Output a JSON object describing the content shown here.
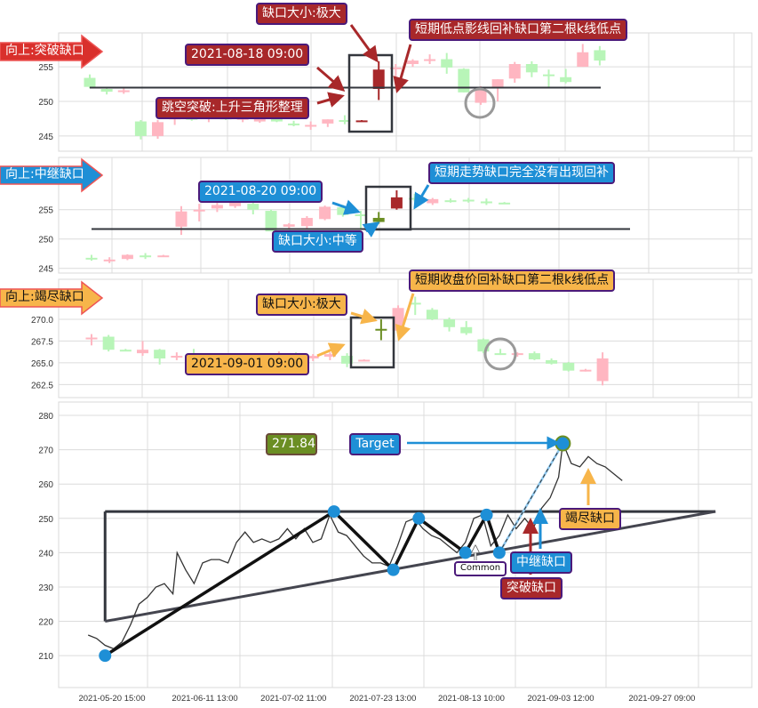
{
  "colors": {
    "up": "#ffb6c1",
    "down": "#b8f5b8",
    "gap_red": "#a8282a",
    "gap_olive": "#6b8e23",
    "line": "#33363d",
    "pivot": "#1e8fd6"
  },
  "panels": [
    {
      "tag": "向上:突破缺口",
      "tag_color": "#d9302c",
      "yticks": [
        "245",
        "250",
        "255"
      ],
      "ytick_values": [
        245,
        250,
        255
      ],
      "ylim": [
        242.8,
        259.9
      ],
      "level": 252,
      "candles": [
        [
          253.4,
          253.9,
          251.9,
          252.1
        ],
        [
          251.8,
          252.1,
          251.0,
          251.4
        ],
        [
          251.5,
          251.9,
          251.1,
          251.6
        ],
        [
          247.1,
          247.3,
          244.5,
          245.0
        ],
        [
          245.0,
          247.3,
          244.6,
          247.0
        ],
        [
          247.4,
          248.3,
          246.6,
          247.9
        ],
        [
          247.6,
          248,
          247.2,
          247.5
        ],
        [
          247.5,
          248,
          247,
          247.7
        ],
        [
          247.7,
          248.2,
          247.3,
          247.4
        ],
        [
          247.4,
          247.8,
          247,
          247.6
        ],
        [
          247.1,
          247.7,
          246.9,
          247.6
        ],
        [
          247.6,
          247.8,
          247.0,
          247.1
        ],
        [
          246.8,
          247.2,
          246.4,
          246.7
        ],
        [
          246.5,
          247.1,
          245.9,
          246.6
        ],
        [
          246.8,
          247.4,
          246.3,
          247.4
        ],
        [
          247.3,
          248.0,
          246.7,
          247.2
        ],
        [
          247.2,
          247.3,
          247.1,
          247.25,
          "#a8282a"
        ],
        [
          251.8,
          255.8,
          250.2,
          254.6,
          "#a8282a"
        ],
        [
          254.8,
          255.4,
          252.4,
          254.9
        ],
        [
          255.4,
          256.1,
          255.0,
          255.9
        ],
        [
          256.0,
          256.8,
          255.4,
          256.1
        ],
        [
          256.1,
          257.0,
          254.0,
          254.9
        ],
        [
          254.7,
          254.8,
          251.3,
          251.3
        ],
        [
          249.8,
          252.2,
          249.5,
          251.7
        ],
        [
          252.0,
          253.2,
          250.0,
          253.2
        ],
        [
          253.3,
          255.7,
          252.7,
          255.4
        ],
        [
          255.4,
          255.8,
          253.5,
          254.2
        ],
        [
          253.9,
          254.6,
          251.9,
          253.8
        ],
        [
          253.5,
          254.7,
          252.6,
          252.8
        ],
        [
          255.0,
          258.3,
          255.0,
          257.1
        ],
        [
          257.4,
          258.0,
          255.2,
          255.9
        ]
      ],
      "annotations": [
        "缺口大小:极大",
        "2021-08-18 09:00",
        "跳空突破:上升三角形整理",
        "短期低点影线回补缺口第二根k线低点"
      ]
    },
    {
      "tag": "向上:中继缺口",
      "tag_color": "#1e8fd6",
      "yticks": [
        "245",
        "250",
        "255"
      ],
      "ytick_values": [
        245,
        250,
        255
      ],
      "ylim": [
        244.2,
        263.9
      ],
      "level": 251.7,
      "candles": [
        [
          246.8,
          247.3,
          246.3,
          246.7
        ],
        [
          246.4,
          246.9,
          245.9,
          246.5
        ],
        [
          246.6,
          247.4,
          246.4,
          247.3
        ],
        [
          247.2,
          247.6,
          246.6,
          247.1
        ],
        [
          247.2,
          247.3,
          247.1,
          247.2
        ],
        [
          252.1,
          255.6,
          250.7,
          254.7
        ],
        [
          254.7,
          256.0,
          253.0,
          255.0
        ],
        [
          255.2,
          256.2,
          254.6,
          255.8
        ],
        [
          255.6,
          256.6,
          255.3,
          256.2
        ],
        [
          256.0,
          256.2,
          254.2,
          255.0
        ],
        [
          254.8,
          255.0,
          251.3,
          251.3
        ],
        [
          252.1,
          252.7,
          251.6,
          252.5
        ],
        [
          252.2,
          253.9,
          251.8,
          253.6
        ],
        [
          253.4,
          255.7,
          253.2,
          255.5
        ],
        [
          255.4,
          255.8,
          253.8,
          254.1
        ],
        [
          254.2,
          254.8,
          251.7,
          254.0
        ],
        [
          252.9,
          254.6,
          252.6,
          253.6,
          "#6b8e23"
        ],
        [
          255.2,
          258.3,
          255.0,
          257.1,
          "#a8282a"
        ],
        [
          257.0,
          257.7,
          256.4,
          256.9
        ],
        [
          256.1,
          257.0,
          255.8,
          256.8
        ],
        [
          256.6,
          256.9,
          256.2,
          256.5
        ],
        [
          256.7,
          257.0,
          256.2,
          256.6
        ],
        [
          256.4,
          256.9,
          255.8,
          256.2
        ],
        [
          256.2,
          256.3,
          256.1,
          256.1
        ]
      ],
      "annotations": [
        "2021-08-20 09:00",
        "缺口大小:中等",
        "短期走势缺口完全没有出现回补"
      ]
    },
    {
      "tag": "向上:竭尽缺口",
      "tag_color": "#f7b54a",
      "yticks": [
        "262.5",
        "265.0",
        "267.5",
        "270.0"
      ],
      "ytick_values": [
        262.5,
        265,
        267.5,
        270
      ],
      "ylim": [
        261.0,
        274.6
      ],
      "candles": [
        [
          267.8,
          268.3,
          267.0,
          267.9
        ],
        [
          268.0,
          268.2,
          266.3,
          266.5
        ],
        [
          266.5,
          266.6,
          266.4,
          266.45
        ],
        [
          266.1,
          267.5,
          265.8,
          266.5
        ],
        [
          266.5,
          266.6,
          264.8,
          265.5
        ],
        [
          265.6,
          266.2,
          265.3,
          265.8
        ],
        [
          265.8,
          266.6,
          265.2,
          265.6
        ],
        [
          265.4,
          265.9,
          265.1,
          265.6
        ],
        [
          265.6,
          265.8,
          265.0,
          265.3
        ],
        [
          265.3,
          265.8,
          265.0,
          265.5
        ],
        [
          265.5,
          265.9,
          265.2,
          265.4
        ],
        [
          265.4,
          266.3,
          265.2,
          265.7
        ],
        [
          265.7,
          266.2,
          265.3,
          265.5
        ],
        [
          265.5,
          266.0,
          265.2,
          265.8
        ],
        [
          265.7,
          266.2,
          265.3,
          266.0
        ],
        [
          265.8,
          266.1,
          264.5,
          264.9
        ],
        [
          265.3,
          265.4,
          265.2,
          265.35
        ],
        [
          268.8,
          270.0,
          267.6,
          268.9,
          "#6b8e23"
        ],
        [
          268.7,
          271.6,
          268.4,
          271.3
        ],
        [
          271.9,
          272.6,
          270.5,
          271.8
        ],
        [
          271.1,
          271.3,
          269.9,
          270.0
        ],
        [
          270.0,
          270.2,
          268.6,
          269.1
        ],
        [
          269.1,
          269.8,
          268.2,
          268.4
        ],
        [
          267.7,
          267.8,
          266.1,
          266.3
        ],
        [
          266.1,
          266.6,
          265.9,
          266.0
        ],
        [
          266.0,
          266.2,
          265.7,
          266.1
        ],
        [
          266.1,
          266.3,
          265.3,
          265.4
        ],
        [
          265.3,
          265.5,
          264.8,
          264.9
        ],
        [
          265.0,
          265.1,
          264.0,
          264.1
        ],
        [
          264.1,
          264.3,
          264.0,
          264.2
        ],
        [
          262.9,
          266.2,
          262.4,
          265.5
        ]
      ],
      "annotations": [
        "缺口大小:极大",
        "2021-09-01 09:00",
        "短期收盘价回补缺口第二根k线低点"
      ]
    }
  ],
  "chart_data": {
    "type": "line",
    "ylim": [
      200.7,
      283.9
    ],
    "yticks": [
      210,
      220,
      230,
      240,
      250,
      260,
      270,
      280
    ],
    "xtick_labels": [
      "2021-05-20 15:00",
      "2021-06-11 13:00",
      "2021-07-02 11:00",
      "2021-07-23 13:00",
      "2021-08-13 10:00",
      "2021-09-03 12:00",
      "2021-09-27 09:00"
    ],
    "grid": true,
    "price": [
      [
        "2021-05-15",
        216
      ],
      [
        "2021-05-17",
        215
      ],
      [
        "2021-05-19",
        213
      ],
      [
        "2021-05-21",
        212
      ],
      [
        "2021-05-23",
        214
      ],
      [
        "2021-05-25",
        219
      ],
      [
        "2021-05-27",
        225
      ],
      [
        "2021-05-29",
        227
      ],
      [
        "2021-05-31",
        230
      ],
      [
        "2021-06-02",
        231
      ],
      [
        "2021-06-04",
        228
      ],
      [
        "2021-06-05",
        240
      ],
      [
        "2021-06-07",
        235
      ],
      [
        "2021-06-09",
        231
      ],
      [
        "2021-06-11",
        237
      ],
      [
        "2021-06-13",
        238
      ],
      [
        "2021-06-15",
        238
      ],
      [
        "2021-06-17",
        237
      ],
      [
        "2021-06-19",
        243
      ],
      [
        "2021-06-21",
        246
      ],
      [
        "2021-06-23",
        243
      ],
      [
        "2021-06-25",
        244
      ],
      [
        "2021-06-27",
        243
      ],
      [
        "2021-06-29",
        244
      ],
      [
        "2021-07-01",
        247
      ],
      [
        "2021-07-03",
        244
      ],
      [
        "2021-07-05",
        247
      ],
      [
        "2021-07-07",
        243
      ],
      [
        "2021-07-09",
        244
      ],
      [
        "2021-07-11",
        251
      ],
      [
        "2021-07-13",
        246
      ],
      [
        "2021-07-15",
        245
      ],
      [
        "2021-07-17",
        242
      ],
      [
        "2021-07-19",
        239
      ],
      [
        "2021-07-21",
        237
      ],
      [
        "2021-07-23",
        237
      ],
      [
        "2021-07-25",
        236
      ],
      [
        "2021-07-27",
        242
      ],
      [
        "2021-07-29",
        249
      ],
      [
        "2021-07-31",
        250
      ],
      [
        "2021-08-02",
        247
      ],
      [
        "2021-08-04",
        245
      ],
      [
        "2021-08-06",
        244
      ],
      [
        "2021-08-08",
        242
      ],
      [
        "2021-08-10",
        240
      ],
      [
        "2021-08-12",
        243
      ],
      [
        "2021-08-14",
        250
      ],
      [
        "2021-08-16",
        251
      ],
      [
        "2021-08-18",
        242
      ],
      [
        "2021-08-20",
        245
      ],
      [
        "2021-08-22",
        251
      ],
      [
        "2021-08-24",
        247
      ],
      [
        "2021-08-26",
        250
      ],
      [
        "2021-08-28",
        247
      ],
      [
        "2021-08-30",
        253
      ],
      [
        "2021-09-01",
        256
      ],
      [
        "2021-09-03",
        262
      ],
      [
        "2021-09-04",
        272
      ],
      [
        "2021-09-06",
        266
      ],
      [
        "2021-09-08",
        265
      ],
      [
        "2021-09-10",
        268
      ],
      [
        "2021-09-12",
        266
      ],
      [
        "2021-09-14",
        265
      ],
      [
        "2021-09-16",
        263
      ],
      [
        "2021-09-18",
        261
      ]
    ],
    "resistance": [
      [
        "2021-05-19",
        252
      ],
      [
        "2021-10-10",
        252
      ]
    ],
    "support": [
      [
        "2021-05-19",
        220
      ],
      [
        "2021-10-10",
        252
      ]
    ],
    "pivots": [
      [
        "2021-05-19",
        210
      ],
      [
        "2021-07-12",
        252
      ],
      [
        "2021-07-26",
        235
      ],
      [
        "2021-08-01",
        250
      ],
      [
        "2021-08-12",
        240
      ],
      [
        "2021-08-17",
        251
      ],
      [
        "2021-08-20",
        240
      ]
    ],
    "target_point": [
      "2021-09-04",
      271.84
    ],
    "labels": {
      "target_value": "271.84",
      "target": "Target",
      "common": "Common",
      "continuation": "中继缺口",
      "breakaway": "突破缺口",
      "exhaustion": "竭尽缺口"
    }
  }
}
